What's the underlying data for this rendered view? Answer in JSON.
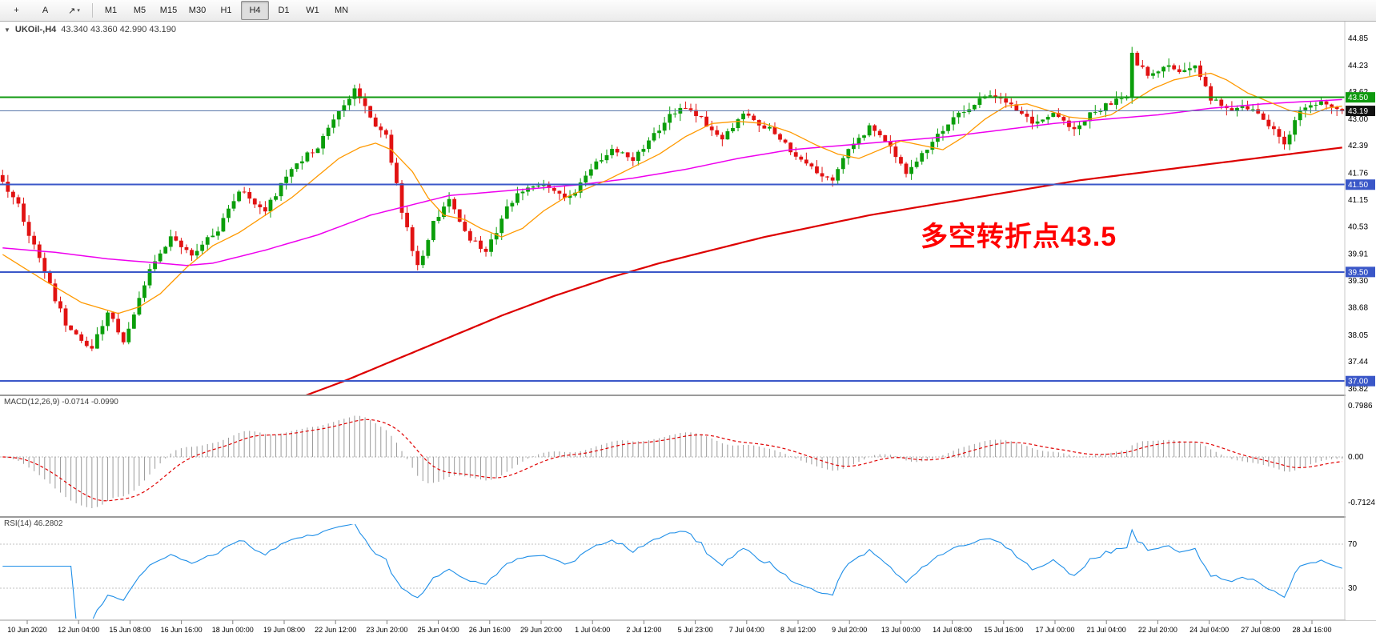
{
  "toolbar": {
    "tools": [
      {
        "name": "crosshair",
        "glyph": "+"
      },
      {
        "name": "text-label",
        "glyph": "A"
      },
      {
        "name": "shapes",
        "glyph": "↗",
        "caret": "▾"
      }
    ],
    "timeframes": [
      {
        "label": "M1",
        "active": false
      },
      {
        "label": "M5",
        "active": false
      },
      {
        "label": "M15",
        "active": false
      },
      {
        "label": "M30",
        "active": false
      },
      {
        "label": "H1",
        "active": false
      },
      {
        "label": "H4",
        "active": true
      },
      {
        "label": "D1",
        "active": false
      },
      {
        "label": "W1",
        "active": false
      },
      {
        "label": "MN",
        "active": false
      }
    ]
  },
  "chart": {
    "title_symbol": "UKOil-,H4",
    "title_ohlc": "43.340 43.360 42.990 43.190",
    "annotation": {
      "text": "多空转折点43.5",
      "color": "#ff0000"
    },
    "price_axis_labels": [
      "44.85",
      "44.23",
      "43.62",
      "43.00",
      "42.39",
      "41.76",
      "41.15",
      "40.53",
      "39.91",
      "39.30",
      "38.68",
      "38.05",
      "37.44",
      "36.82"
    ],
    "price_badges": [
      {
        "value": "43.50",
        "price": 43.5,
        "color": "#0f9a0f"
      },
      {
        "value": "43.19",
        "price": 43.19,
        "color": "#111111"
      },
      {
        "value": "41.50",
        "price": 41.5,
        "color": "#3a57c8"
      },
      {
        "value": "39.50",
        "price": 39.5,
        "color": "#3a57c8"
      },
      {
        "value": "37.00",
        "price": 37.0,
        "color": "#3a57c8"
      }
    ],
    "hlines": [
      {
        "price": 43.5,
        "color": "#0f9a0f",
        "width": 2,
        "name": "resistance-line-43-50"
      },
      {
        "price": 43.19,
        "color": "#5a78aa",
        "width": 1,
        "name": "bid-price-line"
      },
      {
        "price": 41.5,
        "color": "#3a57c8",
        "width": 2,
        "name": "support-line-41-50"
      },
      {
        "price": 39.5,
        "color": "#3a57c8",
        "width": 2,
        "name": "support-line-39-50"
      },
      {
        "price": 37.0,
        "color": "#3a57c8",
        "width": 2,
        "name": "support-line-37-00"
      }
    ],
    "time_axis_labels": [
      "10 Jun 2020",
      "12 Jun 04:00",
      "15 Jun 08:00",
      "16 Jun 16:00",
      "18 Jun 00:00",
      "19 Jun 08:00",
      "22 Jun 12:00",
      "23 Jun 20:00",
      "25 Jun 04:00",
      "26 Jun 16:00",
      "29 Jun 20:00",
      "1 Jul 04:00",
      "2 Jul 12:00",
      "5 Jul 23:00",
      "7 Jul 04:00",
      "8 Jul 12:00",
      "9 Jul 20:00",
      "13 Jul 00:00",
      "14 Jul 08:00",
      "15 Jul 16:00",
      "17 Jul 00:00",
      "21 Jul 04:00",
      "22 Jul 20:00",
      "24 Jul 04:00",
      "27 Jul 08:00",
      "28 Jul 16:00"
    ]
  },
  "macd": {
    "label": "MACD(12,26,9) -0.0714 -0.0990",
    "axis_labels": [
      {
        "value": "0.7986",
        "level": 0.7986
      },
      {
        "value": "0.00",
        "level": 0
      },
      {
        "value": "-0.7124",
        "level": -0.7124
      }
    ]
  },
  "rsi": {
    "label": "RSI(14) 46.2802",
    "levels": [
      {
        "value": "70",
        "level": 70
      },
      {
        "value": "30",
        "level": 30
      }
    ]
  },
  "chart_data": {
    "type": "candlestick",
    "symbol": "UKOil-",
    "timeframe": "H4",
    "ohlc_current": {
      "open": 43.34,
      "high": 43.36,
      "low": 42.99,
      "close": 43.19
    },
    "y_range": [
      36.82,
      44.85
    ],
    "candle_count": 256,
    "noise_seed": 12,
    "horizontal_levels": [
      43.5,
      41.5,
      39.5,
      37.0
    ],
    "close_anchors": [
      [
        0,
        41.6
      ],
      [
        3,
        41.0
      ],
      [
        7,
        39.8
      ],
      [
        12,
        38.3
      ],
      [
        15,
        37.9
      ],
      [
        17,
        37.7
      ],
      [
        20,
        38.6
      ],
      [
        23,
        37.9
      ],
      [
        28,
        39.6
      ],
      [
        32,
        40.3
      ],
      [
        36,
        39.9
      ],
      [
        41,
        40.5
      ],
      [
        45,
        41.4
      ],
      [
        50,
        40.9
      ],
      [
        55,
        41.9
      ],
      [
        60,
        42.4
      ],
      [
        64,
        43.2
      ],
      [
        67,
        43.7
      ],
      [
        70,
        43.0
      ],
      [
        73,
        42.6
      ],
      [
        76,
        40.9
      ],
      [
        79,
        39.6
      ],
      [
        82,
        40.6
      ],
      [
        85,
        41.2
      ],
      [
        88,
        40.4
      ],
      [
        92,
        39.9
      ],
      [
        96,
        41.0
      ],
      [
        100,
        41.5
      ],
      [
        105,
        41.4
      ],
      [
        108,
        41.2
      ],
      [
        112,
        41.9
      ],
      [
        116,
        42.3
      ],
      [
        120,
        42.1
      ],
      [
        125,
        42.8
      ],
      [
        129,
        43.3
      ],
      [
        133,
        43.0
      ],
      [
        137,
        42.6
      ],
      [
        141,
        43.1
      ],
      [
        146,
        42.8
      ],
      [
        150,
        42.3
      ],
      [
        154,
        41.9
      ],
      [
        158,
        41.6
      ],
      [
        161,
        42.3
      ],
      [
        165,
        42.8
      ],
      [
        169,
        42.4
      ],
      [
        172,
        41.8
      ],
      [
        176,
        42.3
      ],
      [
        180,
        42.9
      ],
      [
        184,
        43.3
      ],
      [
        188,
        43.6
      ],
      [
        192,
        43.3
      ],
      [
        196,
        42.9
      ],
      [
        200,
        43.1
      ],
      [
        204,
        42.8
      ],
      [
        208,
        43.2
      ],
      [
        212,
        43.4
      ],
      [
        214,
        43.5
      ],
      [
        215,
        44.45
      ],
      [
        218,
        44.0
      ],
      [
        221,
        44.2
      ],
      [
        224,
        44.1
      ],
      [
        227,
        44.3
      ],
      [
        230,
        43.5
      ],
      [
        233,
        43.2
      ],
      [
        237,
        43.3
      ],
      [
        241,
        42.9
      ],
      [
        244,
        42.4
      ],
      [
        247,
        43.2
      ],
      [
        251,
        43.4
      ],
      [
        255,
        43.19
      ]
    ],
    "ma_orange_anchors": [
      [
        0,
        39.9
      ],
      [
        8,
        39.3
      ],
      [
        15,
        38.8
      ],
      [
        22,
        38.55
      ],
      [
        26,
        38.7
      ],
      [
        30,
        39.0
      ],
      [
        35,
        39.6
      ],
      [
        40,
        40.1
      ],
      [
        45,
        40.4
      ],
      [
        50,
        40.8
      ],
      [
        55,
        41.2
      ],
      [
        60,
        41.7
      ],
      [
        64,
        42.1
      ],
      [
        68,
        42.35
      ],
      [
        71,
        42.45
      ],
      [
        74,
        42.3
      ],
      [
        78,
        41.8
      ],
      [
        81,
        41.2
      ],
      [
        84,
        40.8
      ],
      [
        88,
        40.7
      ],
      [
        91,
        40.5
      ],
      [
        95,
        40.3
      ],
      [
        99,
        40.5
      ],
      [
        103,
        40.9
      ],
      [
        107,
        41.2
      ],
      [
        111,
        41.4
      ],
      [
        115,
        41.6
      ],
      [
        120,
        41.9
      ],
      [
        125,
        42.2
      ],
      [
        130,
        42.6
      ],
      [
        135,
        42.9
      ],
      [
        140,
        42.95
      ],
      [
        145,
        42.9
      ],
      [
        150,
        42.7
      ],
      [
        155,
        42.4
      ],
      [
        159,
        42.2
      ],
      [
        163,
        42.1
      ],
      [
        167,
        42.3
      ],
      [
        171,
        42.5
      ],
      [
        175,
        42.4
      ],
      [
        179,
        42.3
      ],
      [
        183,
        42.6
      ],
      [
        187,
        43.0
      ],
      [
        191,
        43.3
      ],
      [
        195,
        43.35
      ],
      [
        199,
        43.2
      ],
      [
        203,
        43.05
      ],
      [
        207,
        43.0
      ],
      [
        211,
        43.1
      ],
      [
        215,
        43.4
      ],
      [
        219,
        43.7
      ],
      [
        223,
        43.9
      ],
      [
        227,
        44.0
      ],
      [
        230,
        44.05
      ],
      [
        233,
        43.9
      ],
      [
        237,
        43.6
      ],
      [
        241,
        43.4
      ],
      [
        245,
        43.2
      ],
      [
        249,
        43.1
      ],
      [
        252,
        43.25
      ],
      [
        255,
        43.3
      ]
    ],
    "ma_magenta_anchors": [
      [
        0,
        40.05
      ],
      [
        10,
        39.95
      ],
      [
        20,
        39.8
      ],
      [
        30,
        39.7
      ],
      [
        35,
        39.65
      ],
      [
        40,
        39.7
      ],
      [
        50,
        40.0
      ],
      [
        60,
        40.35
      ],
      [
        70,
        40.8
      ],
      [
        80,
        41.1
      ],
      [
        85,
        41.25
      ],
      [
        90,
        41.3
      ],
      [
        95,
        41.35
      ],
      [
        100,
        41.4
      ],
      [
        110,
        41.5
      ],
      [
        120,
        41.65
      ],
      [
        130,
        41.85
      ],
      [
        140,
        42.1
      ],
      [
        150,
        42.3
      ],
      [
        160,
        42.4
      ],
      [
        170,
        42.5
      ],
      [
        180,
        42.6
      ],
      [
        190,
        42.75
      ],
      [
        200,
        42.9
      ],
      [
        210,
        43.0
      ],
      [
        220,
        43.1
      ],
      [
        230,
        43.25
      ],
      [
        240,
        43.35
      ],
      [
        255,
        43.45
      ]
    ],
    "ma_red_anchors": [
      [
        55,
        36.55
      ],
      [
        65,
        37.0
      ],
      [
        75,
        37.5
      ],
      [
        85,
        38.0
      ],
      [
        95,
        38.5
      ],
      [
        105,
        38.95
      ],
      [
        115,
        39.35
      ],
      [
        125,
        39.7
      ],
      [
        135,
        40.0
      ],
      [
        145,
        40.3
      ],
      [
        155,
        40.55
      ],
      [
        165,
        40.8
      ],
      [
        175,
        41.0
      ],
      [
        185,
        41.2
      ],
      [
        195,
        41.4
      ],
      [
        205,
        41.6
      ],
      [
        215,
        41.75
      ],
      [
        225,
        41.9
      ],
      [
        235,
        42.05
      ],
      [
        245,
        42.2
      ],
      [
        255,
        42.35
      ]
    ],
    "indicators": {
      "macd": {
        "params": [
          12,
          26,
          9
        ],
        "main": -0.0714,
        "signal": -0.099,
        "axis_max": 0.7986,
        "axis_min": -0.7124
      },
      "rsi": {
        "period": 14,
        "value": 46.2802,
        "levels": [
          70,
          30
        ]
      }
    },
    "x_tick_labels": [
      "10 Jun 2020",
      "12 Jun 04:00",
      "15 Jun 08:00",
      "16 Jun 16:00",
      "18 Jun 00:00",
      "19 Jun 08:00",
      "22 Jun 12:00",
      "23 Jun 20:00",
      "25 Jun 04:00",
      "26 Jun 16:00",
      "29 Jun 20:00",
      "1 Jul 04:00",
      "2 Jul 12:00",
      "5 Jul 23:00",
      "7 Jul 04:00",
      "8 Jul 12:00",
      "9 Jul 20:00",
      "13 Jul 00:00",
      "14 Jul 08:00",
      "15 Jul 16:00",
      "17 Jul 00:00",
      "21 Jul 04:00",
      "22 Jul 20:00",
      "24 Jul 04:00",
      "27 Jul 08:00",
      "28 Jul 16:00"
    ]
  }
}
